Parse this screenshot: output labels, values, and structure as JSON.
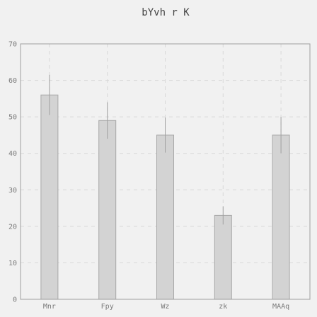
{
  "chart_data": {
    "type": "bar",
    "title": "bYvh  r  K",
    "xlabel": "",
    "ylabel": "",
    "categories": [
      "Mnr",
      "Fpy",
      "Wz",
      "zk",
      "MAAq"
    ],
    "values": [
      56,
      49,
      45,
      23,
      45
    ],
    "errors": [
      5.5,
      5,
      4.8,
      2.5,
      5
    ],
    "ylim": [
      0,
      70
    ],
    "yticks": [
      0,
      10,
      20,
      30,
      40,
      50,
      60,
      70
    ],
    "grid": true,
    "legend": "none",
    "colors": {
      "bar_fill": "#d3d3d3",
      "bar_stroke": "#a8a8a8",
      "error_bar": "#a0a0a0",
      "grid": "#d8d8d8",
      "axes": "#9e9e9e",
      "background": "#f1f1f1"
    }
  }
}
